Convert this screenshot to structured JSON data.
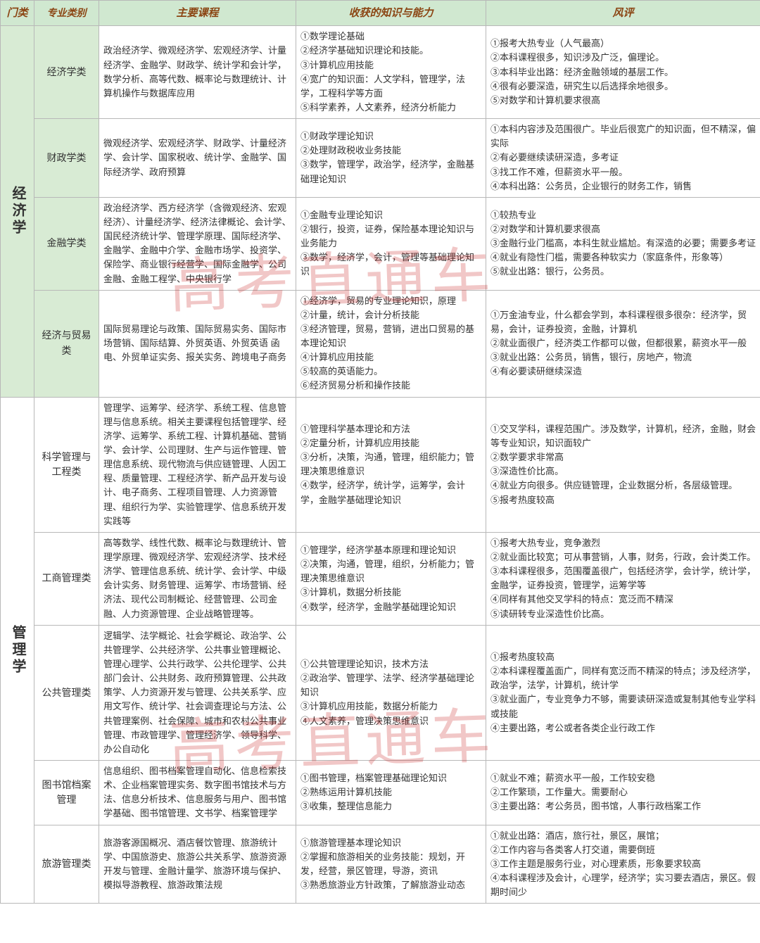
{
  "headers": {
    "category": "门类",
    "major": "专业类别",
    "courses": "主要课程",
    "skills": "收获的知识与能力",
    "review": "风评"
  },
  "watermark": "高考直通车",
  "categories": [
    {
      "name": "经济学",
      "rowspan": 4,
      "bgClass": "cat-econ",
      "majors": [
        {
          "name": "经济学类",
          "courses": "政治经济学、微观经济学、宏观经济学、计量经济学、金融学、财政学、统计学和会计学，数学分析、高等代数、概率论与数理统计、计算机操作与数据库应用",
          "skills": "①数学理论基础\n②经济学基础知识理论和技能。\n③计算机应用技能\n④宽广的知识面：人文学科，管理学，法学，工程科学等方面\n⑤科学素养，人文素养，经济分析能力",
          "review": "①报考大热专业（人气最高）\n②本科课程很多，知识涉及广泛，偏理论。\n③本科毕业出路：经济金融领域的基层工作。\n④很有必要深造，研究生以后选择余地很多。\n⑤对数学和计算机要求很高"
        },
        {
          "name": "财政学类",
          "courses": "微观经济学、宏观经济学、财政学、计量经济学、会计学、国家税收、统计学、金融学、国际经济学、政府预算",
          "skills": "①财政学理论知识\n②处理财政税收业务技能\n③数学，管理学，政治学，经济学，金融基础理论知识",
          "review": "①本科内容涉及范围很广。毕业后很宽广的知识面，但不精深，偏实际\n②有必要继续读研深造，多考证\n③找工作不难，但薪资水平一般。\n④本科出路：公务员，企业银行的财务工作，销售"
        },
        {
          "name": "金融学类",
          "courses": "政治经济学、西方经济学（含微观经济、宏观经济）、计量经济学、经济法律概论、会计学、国民经济统计学、管理学原理、国际经济学、金融学、金融中介学、金融市场学、投资学、保险学、商业银行经营学、国际金融学、公司金融、金融工程学、中央银行学",
          "skills": "①金融专业理论知识\n②银行，投资，证券，保险基本理论知识与业务能力\n③数学，经济学，会计，管理等基础理论知识",
          "review": "①较热专业\n②对数学和计算机要求很高\n③金融行业门槛高，本科生就业尴尬。有深造的必要；需要多考证\n④就业有隐性门槛，需要各种软实力（家庭条件，形象等）\n⑤就业出路：银行，公务员。"
        },
        {
          "name": "经济与贸易类",
          "courses": "国际贸易理论与政策、国际贸易实务、国际市场营销、国际结算、外贸英语、外贸英语 函电、外贸单证实务、报关实务、跨境电子商务",
          "skills": "①经济学，贸易的专业理论知识，原理\n②计量，统计，会计分析技能\n③经济管理，贸易，营销，进出口贸易的基本理论知识\n④计算机应用技能\n⑤较高的英语能力。\n⑥经济贸易分析和操作技能",
          "review": "①万金油专业，什么都会学到，本科课程很多很杂：经济学，贸易，会计，证券投资，金融，计算机\n②就业面很广，经济类工作都可以做，但都很累，薪资水平一般\n③就业出路：公务员，销售，银行，房地产，物流\n④有必要读研继续深造"
        }
      ]
    },
    {
      "name": "管理学",
      "rowspan": 5,
      "bgClass": "cat-mgmt",
      "majors": [
        {
          "name": "科学管理与工程类",
          "courses": "管理学、运筹学、经济学、系统工程、信息管理与信息系统。相关主要课程包括管理学、经济学、运筹学、系统工程、计算机基础、营销学、会计学、公司理财、生产与运作管理、管理信息系统、现代物流与供应链管理、人因工程、质量管理、工程经济学、新产品开发与设计、电子商务、工程项目管理、人力资源管理、组织行为学、实验管理学、信息系统开发实践等",
          "skills": "①管理科学基本理论和方法\n②定量分析，计算机应用技能\n③分析，决策，沟通，管理，组织能力；管理决策思维意识\n④数学，经济学，统计学，运筹学，会计学，金融学基础理论知识",
          "review": "①交叉学科，课程范围广。涉及数学，计算机，经济，金融，财会等专业知识，知识面较广\n②数学要求非常高\n③深造性价比高。\n④就业方向很多。供应链管理，企业数据分析，各层级管理。\n⑤报考热度较高"
        },
        {
          "name": "工商管理类",
          "courses": "高等数学、线性代数、概率论与数理统计、管理学原理、微观经济学、宏观经济学、技术经济学、管理信息系统、统计学、会计学、中级会计实务、财务管理、运筹学、市场营销、经济法、现代公司制概论、经营管理、公司金融、人力资源管理、企业战略管理等。",
          "skills": "①管理学，经济学基本原理和理论知识\n②决策，沟通，管理，组织，分析能力；管理决策思维意识\n③计算机，数据分析技能\n④数学，经济学，金融学基础理论知识",
          "review": "①报考大热专业，竞争激烈\n②就业面比较宽；可从事营销，人事，财务，行政，会计类工作。\n③本科课程很多，范围覆盖很广，包括经济学，会计学，统计学，金融学，证券投资，管理学，运筹学等\n④同样有其他交叉学科的特点：宽泛而不精深\n⑤读研转专业深造性价比高。"
        },
        {
          "name": "公共管理类",
          "courses": "逻辑学、法学概论、社会学概论、政治学、公共管理学、公共经济学、公共事业管理概论、管理心理学、公共行政学、公共伦理学、公共部门会计、公共财务、政府预算管理、公共政策学、人力资源开发与管理、公共关系学、应用文写作、统计学、社会调查理论与方法、公共管理案例、社会保障、城市和农村公共事业管理、市政管理学、管理经济学、领导科学、办公自动化",
          "skills": "①公共管理理论知识，技术方法\n②政治学、管理学、法学、经济学基础理论知识\n③计算机应用技能，数据分析能力\n④人文素养，管理决策思维意识",
          "review": "①报考热度较高\n②本科课程覆盖面广，同样有宽泛而不精深的特点；涉及经济学，政治学，法学，计算机，统计学\n③就业面广，专业竞争力不够，需要读研深造或复制其他专业学科或技能\n④主要出路，考公或者各类企业行政工作"
        },
        {
          "name": "图书馆档案管理",
          "courses": "信息组织、图书档案管理自动化、信息检索技术、企业档案管理实务、数字图书馆技术与方法、信息分析技术、信息服务与用户、图书馆学基础、图书馆管理、文书学、档案管理学",
          "skills": "①图书管理，档案管理基础理论知识\n②熟练运用计算机技能\n③收集，整理信息能力",
          "review": "①就业不难；薪资水平一般，工作较安稳\n②工作繁琐，工作量大。需要耐心\n③主要出路：考公务员，图书馆，人事行政档案工作"
        },
        {
          "name": "旅游管理类",
          "courses": "旅游客源国概况、酒店餐饮管理、旅游统计学、中国旅游史、旅游公共关系学、旅游资源开发与管理、金融计量学、旅游环境与保护、模拟导游教程、旅游政策法规",
          "skills": "①旅游管理基本理论知识\n②掌握和旅游相关的业务技能：规划，开发，经营，景区管理，导游，资讯\n③熟悉旅游业方针政策，了解旅游业动态",
          "review": "①就业出路：酒店，旅行社，景区，展馆；\n②工作内容与各类客人打交道，需要倒班\n③工作主题是服务行业，对心理素质，形象要求较高\n④本科课程涉及会计，心理学，经济学；实习要去酒店，景区。假期时间少"
        }
      ]
    }
  ]
}
